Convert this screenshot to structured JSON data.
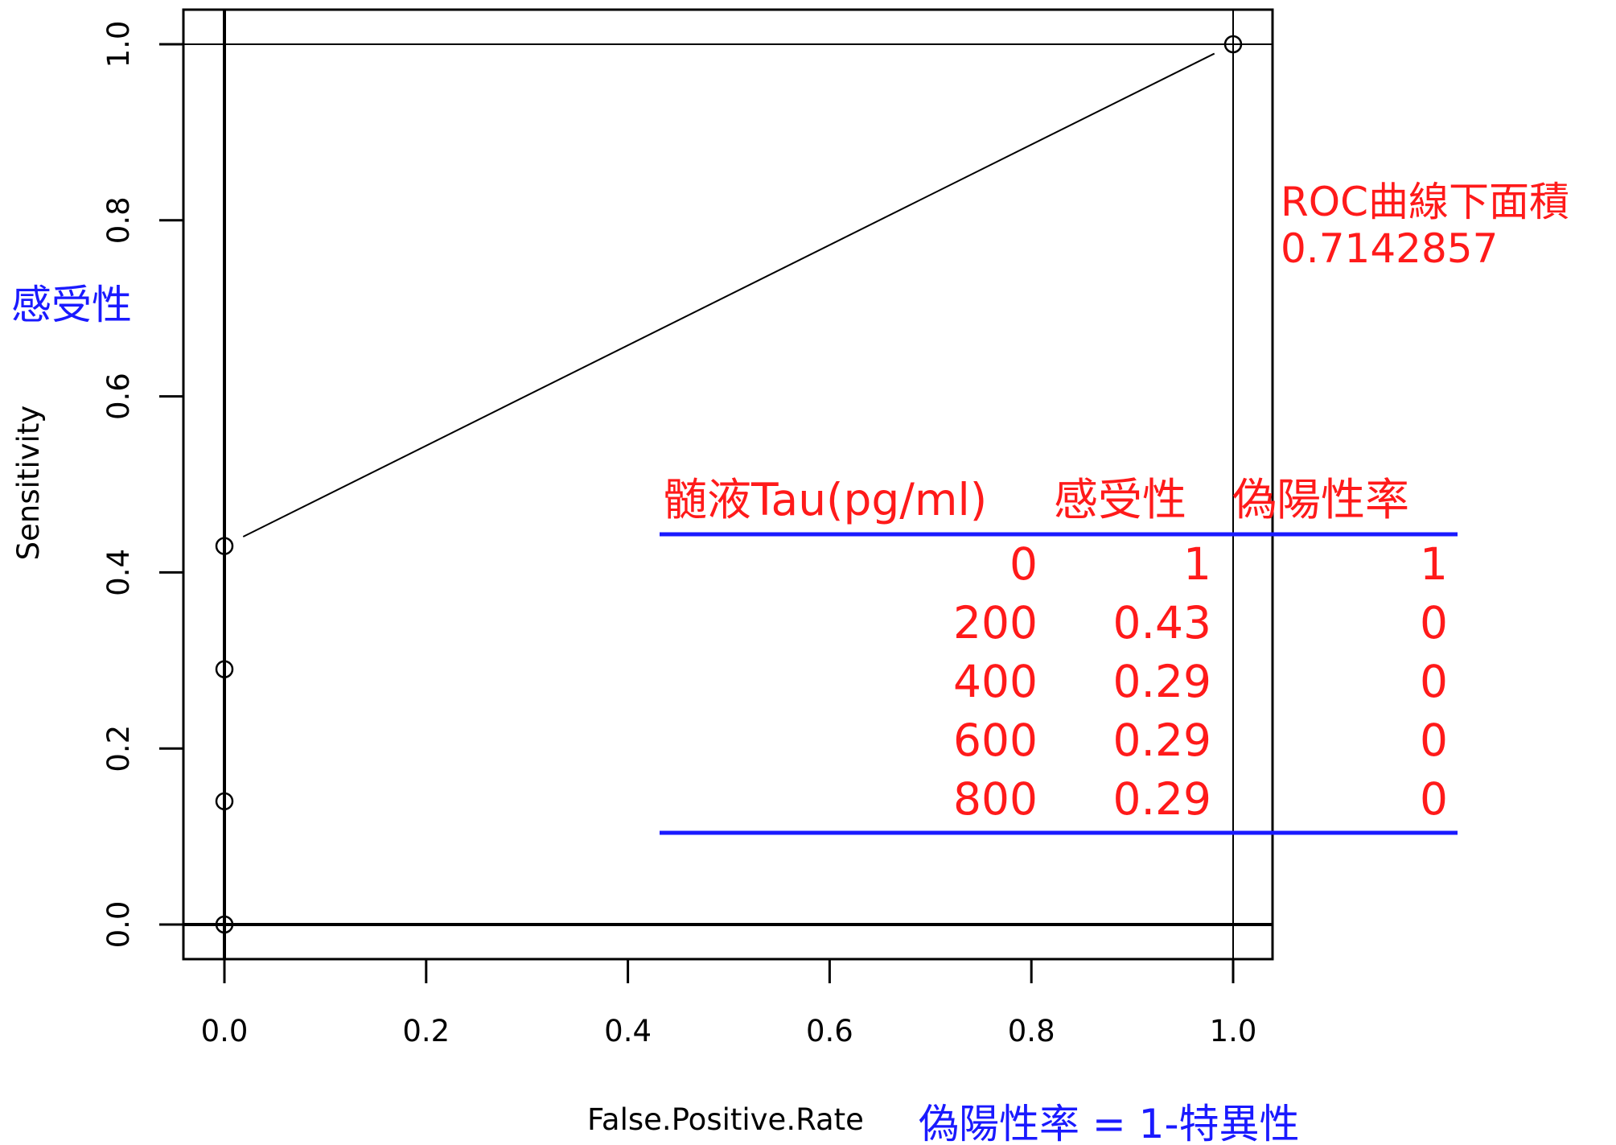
{
  "chart_data": {
    "type": "line",
    "title": "",
    "xlabel": "False.Positive.Rate",
    "ylabel": "Sensitivity",
    "xlabel_annotation": "偽陽性率 = 1-特異性",
    "ylabel_annotation": "感受性",
    "xlim": [
      0,
      1
    ],
    "ylim": [
      0,
      1
    ],
    "x_ticks": [
      "0.0",
      "0.2",
      "0.4",
      "0.6",
      "0.8",
      "1.0"
    ],
    "y_ticks": [
      "0.0",
      "0.2",
      "0.4",
      "0.6",
      "0.8",
      "1.0"
    ],
    "grid": false,
    "series": [
      {
        "points": [
          {
            "x": 0,
            "y": 0
          },
          {
            "x": 0,
            "y": 0.14
          },
          {
            "x": 0,
            "y": 0.29
          },
          {
            "x": 0,
            "y": 0.43
          },
          {
            "x": 1,
            "y": 1
          }
        ]
      }
    ],
    "reference_lines": {
      "vertical_x": [
        0,
        1
      ],
      "horizontal_y": [
        0,
        1
      ]
    },
    "auc": {
      "label": "ROC曲線下面積",
      "value": "0.7142857"
    },
    "table": {
      "headers": [
        "髄液Tau(pg/ml)",
        "感受性",
        "偽陽性率"
      ],
      "rows": [
        [
          "0",
          "1",
          "1"
        ],
        [
          "200",
          "0.43",
          "0"
        ],
        [
          "400",
          "0.29",
          "0"
        ],
        [
          "600",
          "0.29",
          "0"
        ],
        [
          "800",
          "0.29",
          "0"
        ]
      ]
    },
    "colors": {
      "annotation_blue": "#1a1aff",
      "annotation_red": "#ff1a1a",
      "plot": "#000000"
    }
  }
}
